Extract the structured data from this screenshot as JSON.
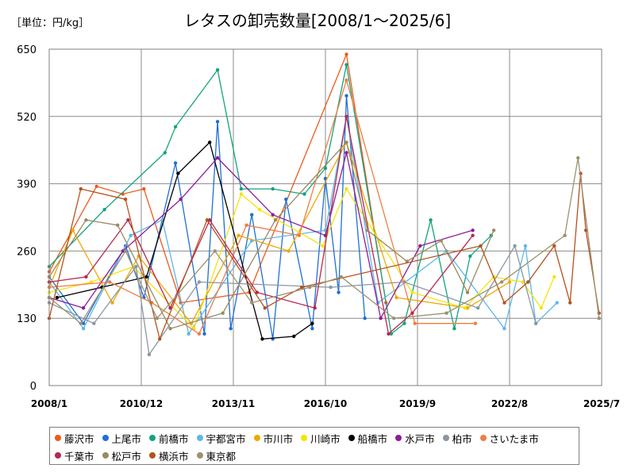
{
  "chart_data": {
    "type": "line",
    "unit_label": "［単位：円/kg］",
    "title": "レタスの卸売数量[2008/1～2025/6]",
    "xlabel": "",
    "ylabel": "",
    "ylim": [
      0,
      650
    ],
    "yticks": [
      0,
      130,
      260,
      390,
      520,
      650
    ],
    "x_tick_labels": [
      "2008/1",
      "2010/12",
      "2013/11",
      "2016/10",
      "2019/9",
      "2022/8",
      "2025/7"
    ],
    "grid": "horizontal",
    "legend_position": "bottom",
    "series": [
      {
        "name": "藤沢市",
        "color": "#ed5b1c",
        "values": [
          {
            "x": "2008/1",
            "y": 220
          },
          {
            "x": "2009/7",
            "y": 385
          },
          {
            "x": "2010/5",
            "y": 370
          },
          {
            "x": "2011/1",
            "y": 380
          },
          {
            "x": "2012/3",
            "y": 160
          },
          {
            "x": "2014/5",
            "y": 180
          },
          {
            "x": "2017/6",
            "y": 640
          },
          {
            "x": "2018/9",
            "y": 160
          }
        ]
      },
      {
        "name": "上尾市",
        "color": "#1f6fd6",
        "values": [
          {
            "x": "2008/1",
            "y": 210
          },
          {
            "x": "2009/2",
            "y": 120
          },
          {
            "x": "2010/6",
            "y": 270
          },
          {
            "x": "2011/1",
            "y": 170
          },
          {
            "x": "2012/1",
            "y": 430
          },
          {
            "x": "2012/12",
            "y": 100
          },
          {
            "x": "2013/5",
            "y": 510
          },
          {
            "x": "2013/10",
            "y": 110
          },
          {
            "x": "2014/6",
            "y": 330
          },
          {
            "x": "2015/2",
            "y": 90
          },
          {
            "x": "2015/7",
            "y": 360
          },
          {
            "x": "2016/5",
            "y": 110
          },
          {
            "x": "2016/10",
            "y": 400
          },
          {
            "x": "2017/3",
            "y": 180
          },
          {
            "x": "2017/6",
            "y": 560
          },
          {
            "x": "2018/1",
            "y": 130
          }
        ]
      },
      {
        "name": "前橋市",
        "color": "#14a37f",
        "values": [
          {
            "x": "2008/1",
            "y": 230
          },
          {
            "x": "2009/10",
            "y": 340
          },
          {
            "x": "2011/9",
            "y": 450
          },
          {
            "x": "2012/1",
            "y": 500
          },
          {
            "x": "2013/5",
            "y": 610
          },
          {
            "x": "2014/2",
            "y": 380
          },
          {
            "x": "2015/2",
            "y": 380
          },
          {
            "x": "2016/2",
            "y": 370
          },
          {
            "x": "2016/10",
            "y": 420
          },
          {
            "x": "2017/6",
            "y": 620
          },
          {
            "x": "2018/11",
            "y": 100
          },
          {
            "x": "2019/4",
            "y": 120
          },
          {
            "x": "2020/2",
            "y": 320
          },
          {
            "x": "2020/11",
            "y": 110
          },
          {
            "x": "2021/5",
            "y": 250
          },
          {
            "x": "2022/1",
            "y": 290
          }
        ]
      },
      {
        "name": "宇都宮市",
        "color": "#5cb8e8",
        "values": [
          {
            "x": "2008/1",
            "y": 200
          },
          {
            "x": "2009/2",
            "y": 110
          },
          {
            "x": "2010/8",
            "y": 290
          },
          {
            "x": "2011/8",
            "y": 320
          },
          {
            "x": "2012/6",
            "y": 100
          },
          {
            "x": "2014/6",
            "y": 280
          },
          {
            "x": "2016/10",
            "y": 300
          },
          {
            "x": "2017/6",
            "y": 520
          },
          {
            "x": "2018/6",
            "y": 160
          },
          {
            "x": "2020/8",
            "y": 260
          },
          {
            "x": "2022/6",
            "y": 110
          },
          {
            "x": "2023/2",
            "y": 270
          },
          {
            "x": "2023/6",
            "y": 120
          },
          {
            "x": "2024/2",
            "y": 160
          }
        ]
      },
      {
        "name": "市川市",
        "color": "#f0a800",
        "values": [
          {
            "x": "2008/1",
            "y": 190
          },
          {
            "x": "2008/10",
            "y": 300
          },
          {
            "x": "2010/1",
            "y": 160
          },
          {
            "x": "2010/11",
            "y": 250
          },
          {
            "x": "2012/7",
            "y": 120
          },
          {
            "x": "2014/1",
            "y": 290
          },
          {
            "x": "2015/8",
            "y": 260
          },
          {
            "x": "2017/6",
            "y": 470
          },
          {
            "x": "2019/1",
            "y": 170
          },
          {
            "x": "2021/4",
            "y": 150
          },
          {
            "x": "2022/8",
            "y": 200
          }
        ]
      },
      {
        "name": "川崎市",
        "color": "#f7e20d",
        "values": [
          {
            "x": "2008/1",
            "y": 180
          },
          {
            "x": "2009/5",
            "y": 200
          },
          {
            "x": "2010/9",
            "y": 230
          },
          {
            "x": "2012/8",
            "y": 110
          },
          {
            "x": "2014/2",
            "y": 370
          },
          {
            "x": "2014/9",
            "y": 340
          },
          {
            "x": "2016/9",
            "y": 270
          },
          {
            "x": "2017/6",
            "y": 380
          },
          {
            "x": "2019/7",
            "y": 180
          },
          {
            "x": "2021/3",
            "y": 150
          },
          {
            "x": "2022/2",
            "y": 210
          },
          {
            "x": "2023/1",
            "y": 200
          },
          {
            "x": "2023/8",
            "y": 150
          },
          {
            "x": "2024/1",
            "y": 210
          }
        ]
      },
      {
        "name": "船橋市",
        "color": "#000000",
        "values": [
          {
            "x": "2008/4",
            "y": 170
          },
          {
            "x": "2009/9",
            "y": 190
          },
          {
            "x": "2011/2",
            "y": 210
          },
          {
            "x": "2012/2",
            "y": 410
          },
          {
            "x": "2013/2",
            "y": 470
          },
          {
            "x": "2014/10",
            "y": 90
          },
          {
            "x": "2015/10",
            "y": 95
          },
          {
            "x": "2016/5",
            "y": 120
          }
        ]
      },
      {
        "name": "水戸市",
        "color": "#8e1b9b",
        "values": [
          {
            "x": "2008/1",
            "y": 170
          },
          {
            "x": "2009/2",
            "y": 150
          },
          {
            "x": "2010/5",
            "y": 260
          },
          {
            "x": "2012/3",
            "y": 360
          },
          {
            "x": "2013/5",
            "y": 440
          },
          {
            "x": "2015/2",
            "y": 330
          },
          {
            "x": "2016/10",
            "y": 290
          },
          {
            "x": "2017/6",
            "y": 450
          },
          {
            "x": "2018/7",
            "y": 130
          },
          {
            "x": "2019/10",
            "y": 270
          },
          {
            "x": "2021/6",
            "y": 300
          }
        ]
      },
      {
        "name": "柏市",
        "color": "#8a97a3",
        "values": [
          {
            "x": "2008/1",
            "y": 160
          },
          {
            "x": "2009/6",
            "y": 120
          },
          {
            "x": "2010/10",
            "y": 230
          },
          {
            "x": "2011/3",
            "y": 60
          },
          {
            "x": "2012/10",
            "y": 200
          },
          {
            "x": "2016/12",
            "y": 190
          },
          {
            "x": "2019/4",
            "y": 200
          },
          {
            "x": "2021/8",
            "y": 150
          },
          {
            "x": "2022/10",
            "y": 270
          },
          {
            "x": "2023/6",
            "y": 120
          }
        ]
      },
      {
        "name": "さいたま市",
        "color": "#ee7e43",
        "values": [
          {
            "x": "2008/1",
            "y": 190
          },
          {
            "x": "2009/12",
            "y": 200
          },
          {
            "x": "2011/4",
            "y": 160
          },
          {
            "x": "2012/10",
            "y": 100
          },
          {
            "x": "2014/4",
            "y": 310
          },
          {
            "x": "2015/12",
            "y": 290
          },
          {
            "x": "2017/6",
            "y": 590
          },
          {
            "x": "2019/8",
            "y": 120
          },
          {
            "x": "2021/7",
            "y": 120
          }
        ]
      },
      {
        "name": "千葉市",
        "color": "#b8274f",
        "values": [
          {
            "x": "2008/1",
            "y": 200
          },
          {
            "x": "2009/3",
            "y": 210
          },
          {
            "x": "2010/7",
            "y": 320
          },
          {
            "x": "2011/11",
            "y": 150
          },
          {
            "x": "2013/2",
            "y": 320
          },
          {
            "x": "2014/8",
            "y": 180
          },
          {
            "x": "2016/6",
            "y": 150
          },
          {
            "x": "2017/6",
            "y": 520
          },
          {
            "x": "2018/10",
            "y": 100
          },
          {
            "x": "2019/7",
            "y": 140
          },
          {
            "x": "2021/6",
            "y": 290
          }
        ]
      },
      {
        "name": "松戸市",
        "color": "#9a8a5e",
        "values": [
          {
            "x": "2008/1",
            "y": 210
          },
          {
            "x": "2009/3",
            "y": 320
          },
          {
            "x": "2010/3",
            "y": 310
          },
          {
            "x": "2011/11",
            "y": 110
          },
          {
            "x": "2013/7",
            "y": 140
          },
          {
            "x": "2015/3",
            "y": 320
          },
          {
            "x": "2017/6",
            "y": 470
          },
          {
            "x": "2018/2",
            "y": 300
          },
          {
            "x": "2019/5",
            "y": 240
          },
          {
            "x": "2020/6",
            "y": 280
          },
          {
            "x": "2021/4",
            "y": 180
          },
          {
            "x": "2022/2",
            "y": 300
          }
        ]
      },
      {
        "name": "横浜市",
        "color": "#b5521c",
        "values": [
          {
            "x": "2008/1",
            "y": 130
          },
          {
            "x": "2009/1",
            "y": 380
          },
          {
            "x": "2010/6",
            "y": 360
          },
          {
            "x": "2011/7",
            "y": 90
          },
          {
            "x": "2013/1",
            "y": 320
          },
          {
            "x": "2014/11",
            "y": 150
          },
          {
            "x": "2016/1",
            "y": 190
          },
          {
            "x": "2021/9",
            "y": 270
          },
          {
            "x": "2022/6",
            "y": 160
          },
          {
            "x": "2023/3",
            "y": 200
          },
          {
            "x": "2024/1",
            "y": 270
          },
          {
            "x": "2024/7",
            "y": 160
          },
          {
            "x": "2024/11",
            "y": 410
          },
          {
            "x": "2025/1",
            "y": 300
          },
          {
            "x": "2025/6",
            "y": 140
          }
        ]
      },
      {
        "name": "東京都",
        "color": "#9b9271",
        "values": [
          {
            "x": "2008/1",
            "y": 170
          },
          {
            "x": "2009/1",
            "y": 120
          },
          {
            "x": "2010/6",
            "y": 260
          },
          {
            "x": "2011/6",
            "y": 130
          },
          {
            "x": "2013/4",
            "y": 260
          },
          {
            "x": "2014/6",
            "y": 160
          },
          {
            "x": "2016/4",
            "y": 190
          },
          {
            "x": "2017/4",
            "y": 210
          },
          {
            "x": "2018/12",
            "y": 130
          },
          {
            "x": "2020/8",
            "y": 140
          },
          {
            "x": "2022/5",
            "y": 200
          },
          {
            "x": "2024/5",
            "y": 290
          },
          {
            "x": "2024/10",
            "y": 440
          },
          {
            "x": "2025/6",
            "y": 130
          }
        ]
      }
    ]
  }
}
